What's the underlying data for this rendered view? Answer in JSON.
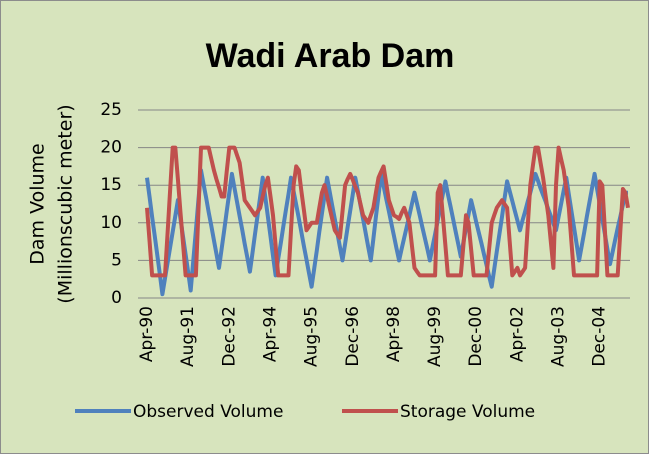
{
  "chart_data": {
    "type": "line",
    "title": "Wadi Arab Dam",
    "y_label": [
      "Dam Volume",
      "(Millionscubic meter)"
    ],
    "categories": [
      "Apr-90",
      null,
      null,
      null,
      null,
      null,
      null,
      null,
      null,
      null,
      null,
      null,
      null,
      null,
      null,
      null,
      "Aug-91",
      null,
      null,
      null,
      null,
      null,
      null,
      null,
      null,
      null,
      null,
      null,
      null,
      null,
      null,
      null,
      "Dec-92",
      null,
      null,
      null,
      null,
      null,
      null,
      null,
      null,
      null,
      null,
      null,
      null,
      null,
      null,
      null,
      "Apr-94",
      null,
      null,
      null,
      null,
      null,
      null,
      null,
      null,
      null,
      null,
      null,
      null,
      null,
      null,
      null,
      "Aug-95",
      null,
      null,
      null,
      null,
      null,
      null,
      null,
      null,
      null,
      null,
      null,
      null,
      null,
      null,
      null,
      "Dec-96",
      null,
      null,
      null,
      null,
      null,
      null,
      null,
      null,
      null,
      null,
      null,
      null,
      null,
      null,
      null,
      "Apr-98",
      null,
      null,
      null,
      null,
      null,
      null,
      null,
      null,
      null,
      null,
      null,
      null,
      null,
      null,
      null,
      "Aug-99",
      null,
      null,
      null,
      null,
      null,
      null,
      null,
      null,
      null,
      null,
      null,
      null,
      null,
      null,
      null,
      "Dec-00",
      null,
      null,
      null,
      null,
      null,
      null,
      null,
      null,
      null,
      null,
      null,
      null,
      null,
      null,
      null,
      "Apr-02",
      null,
      null,
      null,
      null,
      null,
      null,
      null,
      null,
      null,
      null,
      null,
      null,
      null,
      null,
      null,
      "Aug-03",
      null,
      null,
      null,
      null,
      null,
      null,
      null,
      null,
      null,
      null,
      null,
      null,
      null,
      null,
      null,
      "Dec-04",
      null,
      null,
      null,
      null,
      null,
      null,
      null,
      null,
      null,
      null,
      null
    ],
    "series": [
      {
        "name": "Observed Volume",
        "color": "#4f81bd",
        "values": [
          16,
          13.4,
          10.8,
          8.3,
          5.7,
          3.1,
          0.5,
          2.6,
          4.7,
          6.7,
          8.8,
          10.9,
          13,
          10.6,
          8.2,
          5.8,
          3.4,
          1,
          5,
          9,
          13,
          17,
          15.1,
          13.3,
          11.4,
          9.6,
          7.7,
          5.9,
          4,
          6.5,
          9,
          11.5,
          14,
          16.5,
          14.6,
          12.8,
          10.9,
          9.1,
          7.2,
          5.4,
          3.5,
          6,
          8.5,
          11,
          13.5,
          16,
          13.4,
          10.8,
          8.2,
          5.6,
          3,
          5.2,
          7.3,
          9.5,
          11.7,
          13.8,
          16,
          14.2,
          12.4,
          10.6,
          8.8,
          6.9,
          5.1,
          3.3,
          1.5,
          3.9,
          6.3,
          8.8,
          11.2,
          13.6,
          16,
          14.2,
          12.3,
          10.5,
          8.7,
          6.8,
          5,
          7.2,
          9.4,
          11.6,
          13.8,
          16,
          14.2,
          12.3,
          10.5,
          8.7,
          6.8,
          5,
          7.9,
          10.8,
          13.6,
          16.5,
          14.9,
          13.2,
          11.6,
          9.9,
          8.3,
          6.6,
          5,
          6.5,
          8,
          9.5,
          11,
          12.5,
          14,
          12.5,
          11,
          9.5,
          8,
          6.5,
          5,
          6.8,
          8.5,
          10.3,
          12,
          13.8,
          15.5,
          13.8,
          12.2,
          10.5,
          8.8,
          7.2,
          5.5,
          7.4,
          9.3,
          11.1,
          13,
          11.6,
          10.1,
          8.7,
          7.3,
          5.8,
          4.4,
          2.9,
          1.5,
          3.8,
          6.2,
          8.5,
          10.8,
          13.2,
          15.5,
          14.2,
          12.9,
          11.6,
          10.3,
          9,
          10.3,
          11.5,
          12.8,
          14,
          15.3,
          16.5,
          15.6,
          14.6,
          13.7,
          12.8,
          11.8,
          10.9,
          9.9,
          9,
          10.8,
          12.5,
          14.3,
          16,
          13.8,
          11.6,
          9.4,
          7.2,
          5,
          6.9,
          8.8,
          10.8,
          12.7,
          14.6,
          16.5,
          14.5,
          12.5,
          10.5,
          8.5,
          6.5,
          4.5,
          6.1,
          7.7,
          9.3,
          10.8,
          12.4,
          14,
          14
        ]
      },
      {
        "name": "Storage Volume",
        "color": "#c0504d",
        "values": [
          12,
          7.5,
          3,
          3,
          3,
          3,
          3,
          3,
          8.7,
          14.3,
          20,
          20,
          15.8,
          11.5,
          7.3,
          3,
          3,
          3,
          3,
          3,
          11.5,
          20,
          20,
          20,
          20,
          18.5,
          17,
          15.8,
          14.7,
          13.5,
          13.5,
          16.8,
          20,
          20,
          20,
          19,
          18,
          15.5,
          13,
          12.5,
          12,
          11.5,
          11,
          11.5,
          12,
          13.5,
          15,
          16,
          13.5,
          11,
          7,
          3,
          3,
          3,
          3,
          3,
          9,
          15,
          17.5,
          17,
          14.3,
          11.7,
          9,
          9.5,
          10,
          10,
          10,
          12,
          14,
          15,
          13.5,
          12,
          10.5,
          9,
          8.5,
          8,
          11.5,
          15,
          15.8,
          16.5,
          15.7,
          14.8,
          14,
          12.5,
          11,
          10.5,
          10,
          11,
          12,
          14,
          16,
          16.8,
          17.5,
          15.3,
          13,
          12,
          11,
          10.8,
          10.5,
          11.3,
          12,
          11,
          10,
          7,
          4,
          3.5,
          3,
          3,
          3,
          3,
          3,
          3,
          3,
          14,
          15,
          11,
          7,
          3,
          3,
          3,
          3,
          3,
          3,
          7,
          11,
          10,
          6.5,
          3,
          3,
          3,
          3,
          3,
          3,
          6.5,
          10,
          11,
          12,
          12.5,
          13,
          12.5,
          12,
          7.5,
          3,
          3.5,
          4,
          3,
          3.5,
          4,
          9.5,
          15,
          17.5,
          20,
          20,
          18,
          16,
          13.5,
          11,
          7.5,
          4,
          15,
          20,
          18.5,
          17,
          14.5,
          12,
          7.5,
          3,
          3,
          3,
          3,
          3,
          3,
          3,
          3,
          3,
          3,
          15.5,
          15,
          9,
          3,
          3,
          3,
          3,
          3,
          8.8,
          14.5,
          14,
          12
        ]
      }
    ],
    "ylim": [
      0,
      25
    ],
    "yticks": [
      0,
      5,
      10,
      15,
      20,
      25
    ],
    "grid": true,
    "legend": "bottom"
  }
}
